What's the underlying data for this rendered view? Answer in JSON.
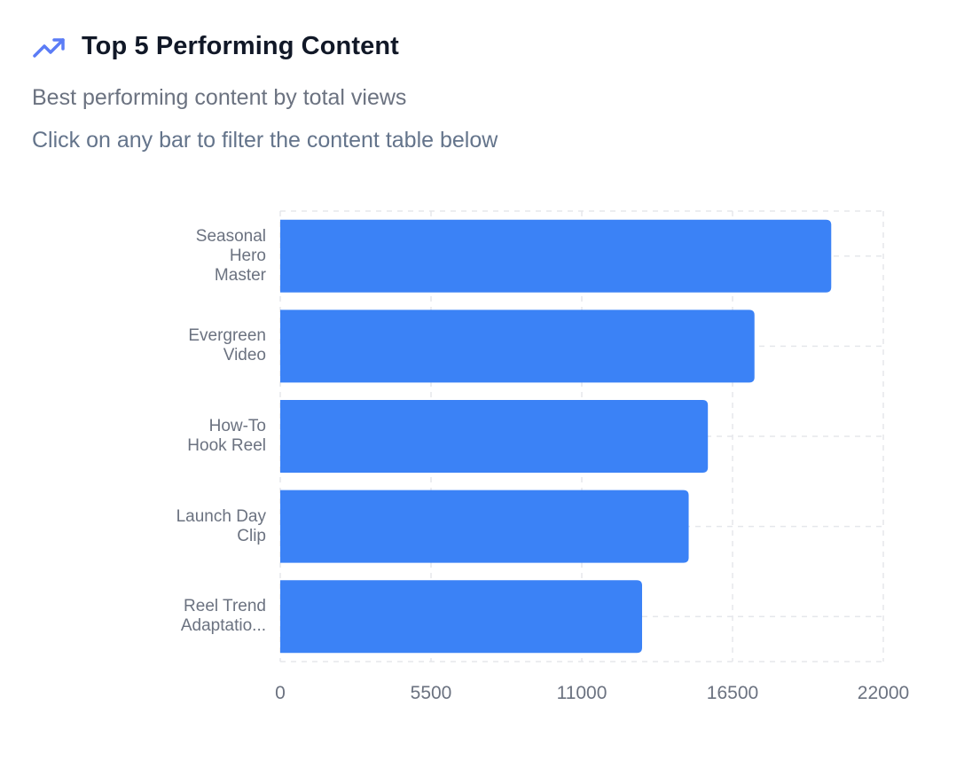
{
  "header": {
    "icon": "trending-up-icon",
    "title": "Top 5 Performing Content",
    "subtitle": "Best performing content by total views",
    "hint": "Click on any bar to filter the content table below"
  },
  "colors": {
    "bar": "#3b82f6",
    "icon": "#5b7cf6",
    "grid": "#e5e7eb",
    "title": "#111827",
    "muted": "#6b7280"
  },
  "chart_data": {
    "type": "bar",
    "orientation": "horizontal",
    "title": "Top 5 Performing Content",
    "subtitle": "Best performing content by total views",
    "categories": [
      "Seasonal Hero Master",
      "Evergreen Video",
      "How-To Hook Reel",
      "Launch Day Clip",
      "Reel Trend Adaptatio..."
    ],
    "category_labels": [
      "Seasonal\nHero\nMaster",
      "Evergreen\nVideo",
      "How-To\nHook Reel",
      "Launch Day\nClip",
      "Reel Trend\nAdaptatio..."
    ],
    "values": [
      20100,
      17300,
      15600,
      14900,
      13200
    ],
    "xlabel": "",
    "ylabel": "",
    "xlim": [
      0,
      22000
    ],
    "xticks": [
      "0",
      "5500",
      "11000",
      "16500",
      "22000"
    ],
    "grid": true,
    "legend": null
  }
}
